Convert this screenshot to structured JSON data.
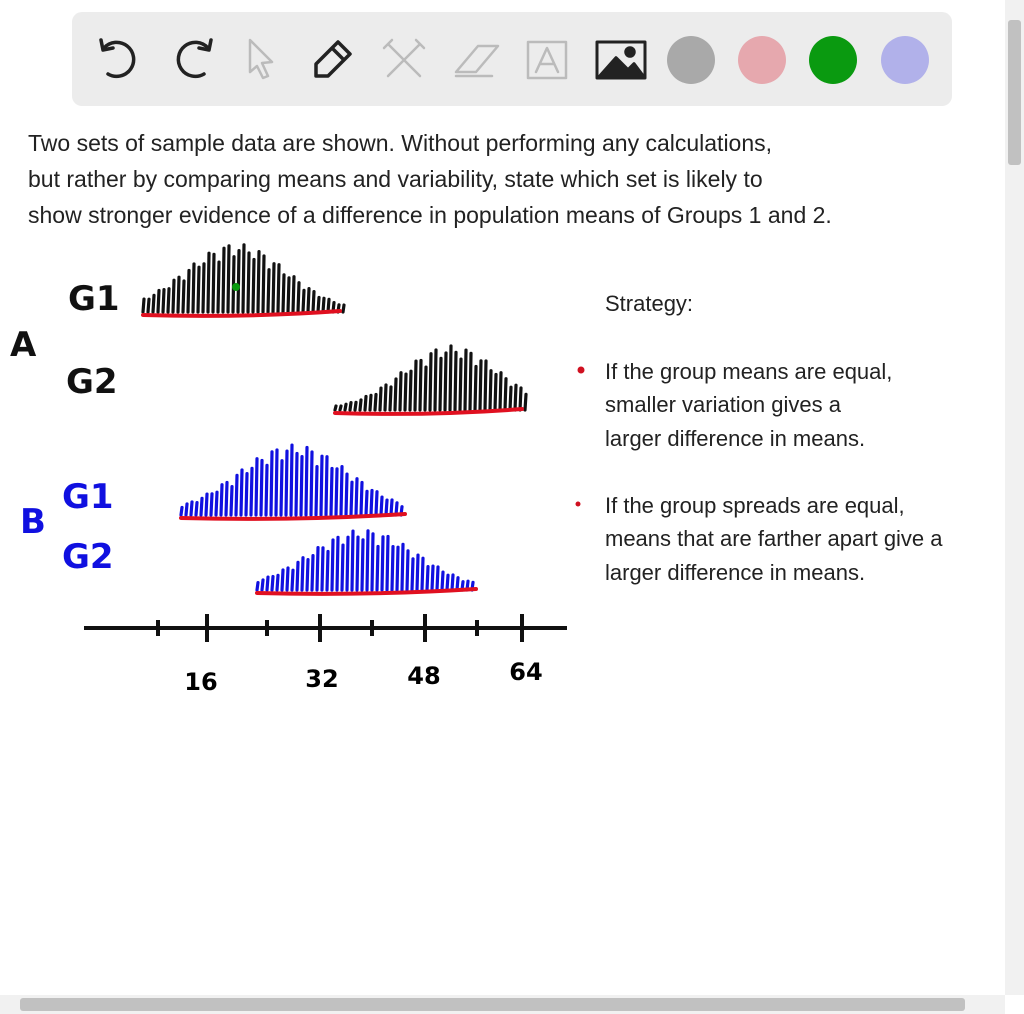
{
  "question": {
    "lines": [
      "Two sets of sample data are shown. Without performing any calculations,",
      "but rather by comparing means and variability, state which set is likely to",
      "show stronger evidence of a difference in population means of Groups 1 and 2."
    ]
  },
  "sketch": {
    "set_a": "A",
    "set_a_g1": "G1",
    "set_a_g2": "G2",
    "set_b": "B",
    "set_b_g1": "G1",
    "set_b_g2": "G2",
    "axis_labels": [
      16,
      32,
      48,
      64
    ]
  },
  "strategy": {
    "title": "Strategy:",
    "bullets": [
      [
        "If the group means are equal,",
        "smaller variation gives a",
        "larger difference in means."
      ],
      [
        "If the group spreads are equal,",
        "means that are farther apart give a",
        "larger difference in means."
      ]
    ]
  }
}
